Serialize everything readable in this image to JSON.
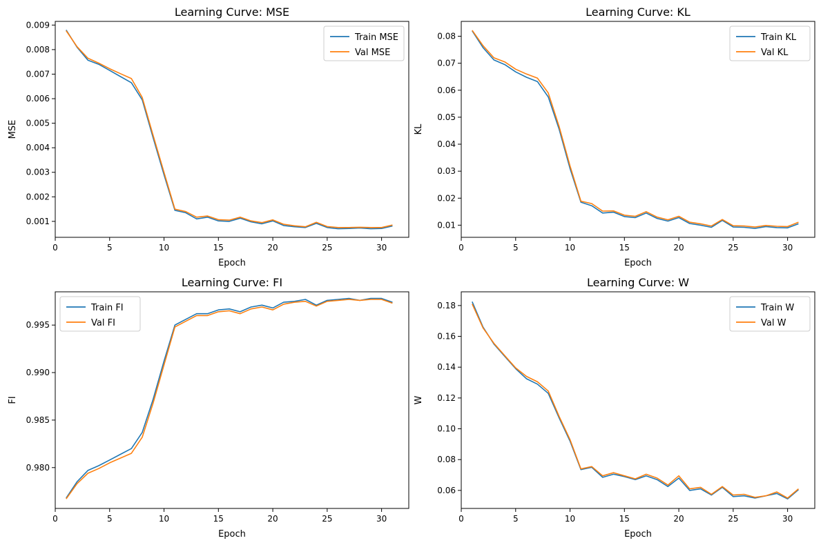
{
  "colors": {
    "train": "#1f77b4",
    "val": "#ff7f0e"
  },
  "chart_data": [
    {
      "type": "line",
      "title": "Learning Curve: MSE",
      "xlabel": "Epoch",
      "ylabel": "MSE",
      "xlim": [
        0,
        32.5
      ],
      "ylim": [
        0.00035,
        0.00915
      ],
      "xticks": [
        0,
        5,
        10,
        15,
        20,
        25,
        30
      ],
      "xtick_labels": [
        "0",
        "5",
        "10",
        "15",
        "20",
        "25",
        "30"
      ],
      "yticks": [
        0.001,
        0.002,
        0.003,
        0.004,
        0.005,
        0.006,
        0.007,
        0.008,
        0.009
      ],
      "ytick_labels": [
        "0.001",
        "0.002",
        "0.003",
        "0.004",
        "0.005",
        "0.006",
        "0.007",
        "0.008",
        "0.009"
      ],
      "legend_position": "top-right",
      "x": [
        1,
        2,
        3,
        4,
        5,
        6,
        7,
        8,
        9,
        10,
        11,
        12,
        13,
        14,
        15,
        16,
        17,
        18,
        19,
        20,
        21,
        22,
        23,
        24,
        25,
        26,
        27,
        28,
        29,
        30,
        31
      ],
      "series": [
        {
          "name": "Train MSE",
          "color_key": "train",
          "values": [
            0.0088,
            0.0081,
            0.00757,
            0.0074,
            0.00715,
            0.0069,
            0.00665,
            0.00595,
            0.0044,
            0.0029,
            0.00145,
            0.00135,
            0.0011,
            0.00117,
            0.00102,
            0.001,
            0.00113,
            0.00098,
            0.0009,
            0.00102,
            0.00083,
            0.00078,
            0.00075,
            0.00092,
            0.00075,
            0.0007,
            0.00071,
            0.00073,
            0.0007,
            0.00071,
            0.00081
          ]
        },
        {
          "name": "Val MSE",
          "color_key": "val",
          "values": [
            0.00877,
            0.00812,
            0.00765,
            0.00745,
            0.00722,
            0.00702,
            0.00682,
            0.00605,
            0.0045,
            0.003,
            0.0015,
            0.0014,
            0.00117,
            0.00122,
            0.00107,
            0.00105,
            0.00117,
            0.00102,
            0.00095,
            0.00106,
            0.00088,
            0.00082,
            0.00078,
            0.00096,
            0.00079,
            0.00075,
            0.00075,
            0.00076,
            0.00075,
            0.00075,
            0.00085
          ]
        }
      ]
    },
    {
      "type": "line",
      "title": "Learning Curve: KL",
      "xlabel": "Epoch",
      "ylabel": "KL",
      "xlim": [
        0,
        32.5
      ],
      "ylim": [
        0.0055,
        0.0855
      ],
      "xticks": [
        0,
        5,
        10,
        15,
        20,
        25,
        30
      ],
      "xtick_labels": [
        "0",
        "5",
        "10",
        "15",
        "20",
        "25",
        "30"
      ],
      "yticks": [
        0.01,
        0.02,
        0.03,
        0.04,
        0.05,
        0.06,
        0.07,
        0.08
      ],
      "ytick_labels": [
        "0.01",
        "0.02",
        "0.03",
        "0.04",
        "0.05",
        "0.06",
        "0.07",
        "0.08"
      ],
      "legend_position": "top-right",
      "x": [
        1,
        2,
        3,
        4,
        5,
        6,
        7,
        8,
        9,
        10,
        11,
        12,
        13,
        14,
        15,
        16,
        17,
        18,
        19,
        20,
        21,
        22,
        23,
        24,
        25,
        26,
        27,
        28,
        29,
        30,
        31
      ],
      "series": [
        {
          "name": "Train KL",
          "color_key": "train",
          "values": [
            0.082,
            0.0758,
            0.0712,
            0.0695,
            0.0668,
            0.0648,
            0.0632,
            0.0575,
            0.0455,
            0.031,
            0.0185,
            0.0172,
            0.0145,
            0.0148,
            0.0132,
            0.0128,
            0.0145,
            0.0125,
            0.0115,
            0.0128,
            0.0106,
            0.01,
            0.0092,
            0.0118,
            0.0093,
            0.0092,
            0.0088,
            0.0095,
            0.0091,
            0.009,
            0.0105
          ]
        },
        {
          "name": "Val KL",
          "color_key": "val",
          "values": [
            0.0822,
            0.0765,
            0.072,
            0.0705,
            0.0678,
            0.066,
            0.0645,
            0.059,
            0.0465,
            0.032,
            0.0189,
            0.018,
            0.0152,
            0.0153,
            0.0137,
            0.0133,
            0.015,
            0.013,
            0.012,
            0.0133,
            0.0111,
            0.0105,
            0.0097,
            0.0121,
            0.0098,
            0.0097,
            0.0093,
            0.0099,
            0.0096,
            0.0095,
            0.0111
          ]
        }
      ]
    },
    {
      "type": "line",
      "title": "Learning Curve: FI",
      "xlabel": "Epoch",
      "ylabel": "FI",
      "xlim": [
        0,
        32.5
      ],
      "ylim": [
        0.9757,
        0.9985
      ],
      "xticks": [
        0,
        5,
        10,
        15,
        20,
        25,
        30
      ],
      "xtick_labels": [
        "0",
        "5",
        "10",
        "15",
        "20",
        "25",
        "30"
      ],
      "yticks": [
        0.98,
        0.985,
        0.99,
        0.995
      ],
      "ytick_labels": [
        "0.980",
        "0.985",
        "0.990",
        "0.995"
      ],
      "legend_position": "top-left",
      "x": [
        1,
        2,
        3,
        4,
        5,
        6,
        7,
        8,
        9,
        10,
        11,
        12,
        13,
        14,
        15,
        16,
        17,
        18,
        19,
        20,
        21,
        22,
        23,
        24,
        25,
        26,
        27,
        28,
        29,
        30,
        31
      ],
      "series": [
        {
          "name": "Train FI",
          "color_key": "train",
          "values": [
            0.9768,
            0.9785,
            0.9797,
            0.9802,
            0.9808,
            0.9814,
            0.982,
            0.9837,
            0.9872,
            0.9912,
            0.995,
            0.9956,
            0.9962,
            0.9962,
            0.9966,
            0.9967,
            0.9964,
            0.9969,
            0.9971,
            0.9968,
            0.9974,
            0.9975,
            0.9977,
            0.9971,
            0.9976,
            0.9977,
            0.9978,
            0.9976,
            0.9978,
            0.9978,
            0.9974
          ]
        },
        {
          "name": "Val FI",
          "color_key": "val",
          "values": [
            0.9767,
            0.9783,
            0.9794,
            0.9799,
            0.9805,
            0.981,
            0.9815,
            0.9832,
            0.9868,
            0.9908,
            0.9948,
            0.9954,
            0.996,
            0.996,
            0.9964,
            0.9965,
            0.9962,
            0.9967,
            0.9969,
            0.9966,
            0.9972,
            0.9974,
            0.9975,
            0.997,
            0.9975,
            0.9976,
            0.9977,
            0.9976,
            0.9977,
            0.9977,
            0.9973
          ]
        }
      ]
    },
    {
      "type": "line",
      "title": "Learning Curve: W",
      "xlabel": "Epoch",
      "ylabel": "W",
      "xlim": [
        0,
        32.5
      ],
      "ylim": [
        0.0483,
        0.1889
      ],
      "xticks": [
        0,
        5,
        10,
        15,
        20,
        25,
        30
      ],
      "xtick_labels": [
        "0",
        "5",
        "10",
        "15",
        "20",
        "25",
        "30"
      ],
      "yticks": [
        0.06,
        0.08,
        0.1,
        0.12,
        0.14,
        0.16,
        0.18
      ],
      "ytick_labels": [
        "0.06",
        "0.08",
        "0.10",
        "0.12",
        "0.14",
        "0.16",
        "0.18"
      ],
      "legend_position": "top-right",
      "x": [
        1,
        2,
        3,
        4,
        5,
        6,
        7,
        8,
        9,
        10,
        11,
        12,
        13,
        14,
        15,
        16,
        17,
        18,
        19,
        20,
        21,
        22,
        23,
        24,
        25,
        26,
        27,
        28,
        29,
        30,
        31
      ],
      "series": [
        {
          "name": "Train W",
          "color_key": "train",
          "values": [
            0.1825,
            0.166,
            0.155,
            0.147,
            0.139,
            0.1325,
            0.129,
            0.123,
            0.107,
            0.092,
            0.0735,
            0.075,
            0.0685,
            0.0705,
            0.069,
            0.067,
            0.0695,
            0.067,
            0.0625,
            0.068,
            0.06,
            0.061,
            0.057,
            0.062,
            0.056,
            0.0565,
            0.055,
            0.0565,
            0.058,
            0.0545,
            0.0605
          ]
        },
        {
          "name": "Val W",
          "color_key": "val",
          "values": [
            0.181,
            0.1655,
            0.1555,
            0.1475,
            0.1395,
            0.134,
            0.1305,
            0.1245,
            0.108,
            0.093,
            0.074,
            0.0755,
            0.0695,
            0.0715,
            0.0695,
            0.0675,
            0.0705,
            0.068,
            0.0635,
            0.0695,
            0.061,
            0.062,
            0.0575,
            0.0625,
            0.057,
            0.0575,
            0.0555,
            0.0565,
            0.059,
            0.055,
            0.061
          ]
        }
      ]
    }
  ]
}
